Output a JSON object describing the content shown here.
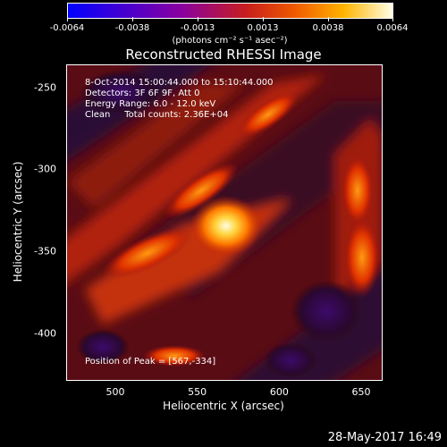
{
  "colorbar": {
    "ticks": [
      "-0.0064",
      "-0.0038",
      "-0.0013",
      "0.0013",
      "0.0038",
      "0.0064"
    ],
    "units": "(photons cm⁻² s⁻¹ asec⁻²)",
    "range": [
      -0.0064,
      0.0064
    ]
  },
  "chart_data": {
    "type": "heatmap",
    "title": "Reconstructed RHESSI Image",
    "xlabel": "Heliocentric X (arcsec)",
    "ylabel": "Heliocentric Y (arcsec)",
    "xlim": [
      470,
      662
    ],
    "ylim": [
      -428,
      -236
    ],
    "xticks": [
      "500",
      "550",
      "600",
      "650"
    ],
    "yticks": [
      "-250",
      "-300",
      "-350",
      "-400"
    ],
    "peak": {
      "x": 567,
      "y": -334,
      "label": "Position of Peak = [567,-334]"
    },
    "annotations": [
      "8-Oct-2014 15:00:44.000 to 15:10:44.000",
      "Detectors: 3F 6F 9F, Att 0",
      "Energy Range: 6.0 - 12.0 keV",
      "Clean     Total counts: 2.36E+04"
    ]
  },
  "footer": {
    "timestamp": "28-May-2017 16:49"
  }
}
